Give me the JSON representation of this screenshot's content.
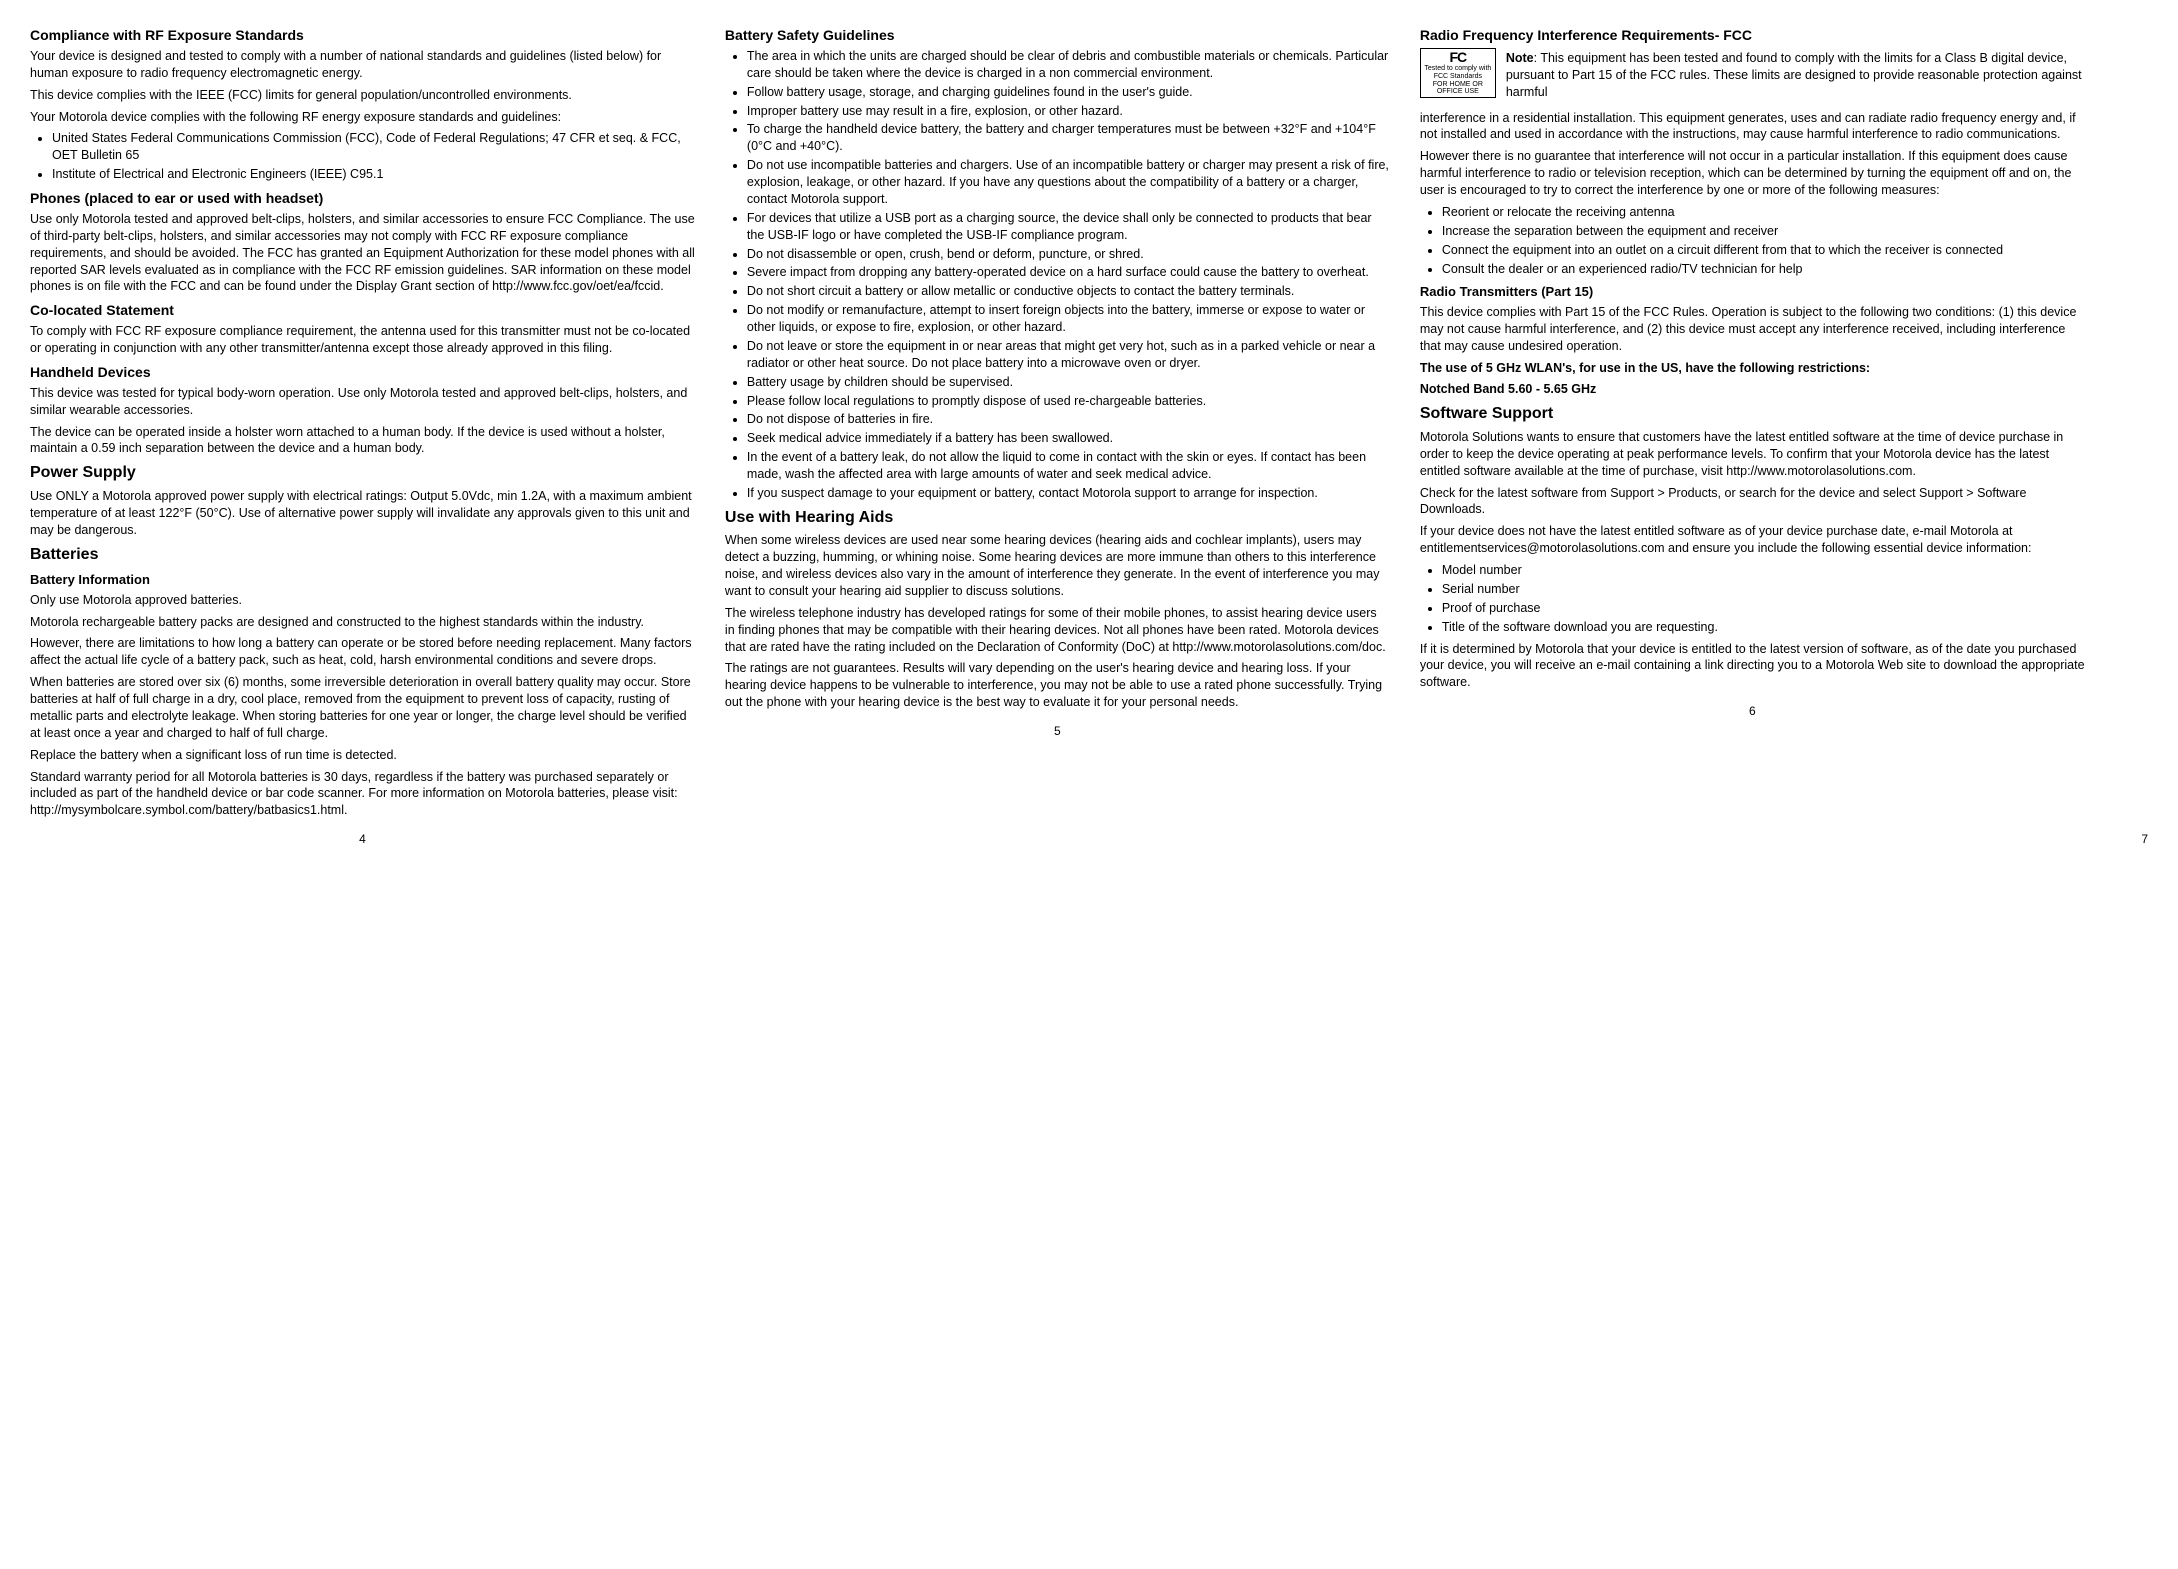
{
  "col1": {
    "h_compliance": "Compliance with RF Exposure Standards",
    "p1": "Your device is designed and tested to comply with a number of national standards and guidelines (listed below) for human exposure to radio frequency electromagnetic energy.",
    "p2": "This device complies with the IEEE (FCC) limits for general population/uncontrolled environments.",
    "p3": "Your Motorola device complies with the following RF energy exposure standards and guidelines:",
    "b1": "United States Federal Communications Commission (FCC), Code of Federal Regulations; 47 CFR et seq. & FCC, OET Bulletin 65",
    "b2": "Institute of Electrical and Electronic Engineers (IEEE) C95.1",
    "h_phones": "Phones (placed to ear or used with headset)",
    "p4": "Use only Motorola tested and approved belt-clips, holsters, and similar accessories to ensure FCC Compliance. The use of third-party belt-clips, holsters, and similar accessories may not comply with FCC RF exposure compliance requirements, and should be avoided. The FCC has granted an Equipment Authorization for these model phones with all reported SAR levels evaluated as in compliance with the FCC RF emission guidelines. SAR information on these model phones is on file with the FCC and can be found under the Display Grant section of http://www.fcc.gov/oet/ea/fccid.",
    "h_coloc": "Co-located Statement",
    "p5": "To comply with FCC RF exposure compliance requirement, the antenna used for this transmitter must not be co-located or operating in conjunction with any other transmitter/antenna except those already approved in this filing.",
    "h_handheld": "Handheld Devices",
    "p6": "This device was tested for typical body-worn operation. Use only Motorola tested and approved belt-clips, holsters, and similar wearable accessories.",
    "p7": "The device can be operated inside a holster worn attached to a human body. If the device is used without a holster, maintain a 0.59 inch separation between the device and a human body.",
    "h_power": "Power Supply",
    "p8": "Use ONLY a Motorola approved power supply with electrical ratings: Output 5.0Vdc, min 1.2A, with a maximum ambient temperature of at least 122°F (50°C). Use of alternative power supply will invalidate any approvals given to this unit and may be dangerous.",
    "h_batt": "Batteries",
    "h_battinfo": "Battery Information",
    "p9": "Only use Motorola approved batteries.",
    "p10": "Motorola rechargeable battery packs are designed and constructed to the highest standards within the industry.",
    "p11": "However, there are limitations to how long a battery can operate or be stored before needing replacement. Many factors affect the actual life cycle of a battery pack, such as heat, cold, harsh environmental conditions and severe drops.",
    "p12": "When batteries are stored over six (6) months, some irreversible deterioration in overall battery quality may occur. Store batteries at half of full charge in a dry, cool place, removed from the equipment to prevent loss of capacity, rusting of metallic parts and electrolyte leakage. When storing batteries for one year or longer, the charge level should be verified at least once a year and charged to half of full charge.",
    "p13": "Replace the battery when a significant loss of run time is detected.",
    "p14": "Standard warranty period for all Motorola batteries is 30 days, regardless if the battery was purchased separately or included as part of the handheld device or bar code scanner. For more information on Motorola batteries, please visit: http://mysymbolcare.symbol.com/battery/batbasics1.html.",
    "pagenum": "4"
  },
  "col2": {
    "h_safety": "Battery Safety Guidelines",
    "s1": "The area in which the units are charged should be clear of debris and combustible materials or chemicals. Particular care should be taken where the device is charged in a non commercial environment.",
    "s2": "Follow battery usage, storage, and charging guidelines found in the user's guide.",
    "s3": "Improper battery use may result in a fire, explosion, or other hazard.",
    "s4": "To charge the handheld device battery, the battery and charger temperatures must be between +32°F and +104°F (0°C and +40°C).",
    "s5": "Do not use incompatible batteries and chargers. Use of an incompatible battery or charger may present a risk of fire, explosion, leakage, or other hazard. If you have any questions about the compatibility of a battery or a charger, contact Motorola support.",
    "s6": "For devices that utilize a USB port as a charging source, the device shall only be connected to products that bear the USB-IF logo or have completed the USB-IF compliance program.",
    "s7": "Do not disassemble or open, crush, bend or deform, puncture, or shred.",
    "s8": "Severe impact from dropping any battery-operated device on a hard surface could cause the battery to overheat.",
    "s9": "Do not short circuit a battery or allow metallic or conductive objects to contact the battery terminals.",
    "s10": "Do not modify or remanufacture, attempt to insert foreign objects into the battery, immerse or expose to water or other liquids, or expose to fire, explosion, or other hazard.",
    "s11": "Do not leave or store the equipment in or near areas that might get very hot, such as in a parked vehicle or near a radiator or other heat source. Do not place battery into a microwave oven or dryer.",
    "s12": "Battery usage by children should be supervised.",
    "s13": "Please follow local regulations to promptly dispose of used re-chargeable batteries.",
    "s14": "Do not dispose of batteries in fire.",
    "s15": "Seek medical advice immediately if a battery has been swallowed.",
    "s16": "In the event of a battery leak, do not allow the liquid to come in contact with the skin or eyes. If contact has been made, wash the affected area with large amounts of water and seek medical advice.",
    "s17": "If you suspect damage to your equipment or battery, contact Motorola support to arrange for inspection.",
    "h_hearing": "Use with Hearing Aids",
    "p1": "When some wireless devices are used near some hearing devices (hearing aids and cochlear implants), users may detect a buzzing, humming, or whining noise. Some hearing devices are more immune than others to this interference noise, and wireless devices also vary in the amount of interference they generate. In the event of interference you may want to consult your hearing aid supplier to discuss solutions.",
    "p2": "The wireless telephone industry has developed ratings for some of their mobile phones, to assist hearing device users in finding phones that may be compatible with their hearing devices. Not all phones have been rated. Motorola devices that are rated have the rating included on the Declaration of Conformity (DoC) at http://www.motorolasolutions.com/doc.",
    "p3": "The ratings are not guarantees. Results will vary depending on the user's hearing device and hearing loss. If your hearing device happens to be vulnerable to interference, you may not be able to use a rated phone successfully. Trying out the phone with your hearing device is the best way to evaluate it for your personal needs.",
    "pagenum": "5"
  },
  "col3": {
    "h_rfi": "Radio Frequency Interference Requirements- FCC",
    "fcc_logo_top": "FC",
    "fcc_logo_mid": "Tested to comply with FCC Standards",
    "fcc_logo_bot": "FOR HOME OR OFFICE USE",
    "note_label": "Note",
    "note_text": ": This equipment has been tested and found to comply with the limits for a Class B digital device, pursuant to Part 15 of the FCC rules. These limits are designed to provide reasonable protection against harmful",
    "p_cont": "interference in a residential installation. This equipment generates, uses and can radiate radio frequency energy and, if not installed and used in accordance with the instructions, may cause harmful interference to radio communications.",
    "p2": "However there is no guarantee that interference will not occur in a particular installation. If this equipment does cause harmful interference to radio or television reception, which can be determined by turning the equipment off and on, the user is encouraged to try to correct the interference by one or more of the following measures:",
    "m1": "Reorient or relocate the receiving antenna",
    "m2": "Increase the separation between the equipment and receiver",
    "m3": "Connect the equipment into an outlet on a circuit different from that to which the receiver is connected",
    "m4": "Consult the dealer or an experienced radio/TV technician for help",
    "h_radio": "Radio Transmitters (Part 15)",
    "p3": "This device complies with Part 15 of the FCC Rules. Operation is subject to the following two conditions: (1) this device may not cause harmful interference, and (2) this device must accept any interference received, including interference that may cause undesired operation.",
    "p4": "The use of 5 GHz WLAN's, for use in the US, have the following restrictions:",
    "p5": "Notched Band 5.60 - 5.65 GHz",
    "h_soft": "Software Support",
    "p6": "Motorola Solutions wants to ensure that customers have the latest entitled software at the time of device purchase in order to keep the device operating at peak performance levels. To confirm that your Motorola device has the latest entitled software available at the time of purchase, visit http://www.motorolasolutions.com.",
    "p7": "Check for the latest software from Support > Products, or search for the device and select Support > Software Downloads.",
    "p8": "If your device does not have the latest entitled software as of your device purchase date, e-mail Motorola at entitlementservices@motorolasolutions.com and ensure you include the following essential device information:",
    "i1": "Model number",
    "i2": "Serial number",
    "i3": "Proof of purchase",
    "i4": "Title of the software download you are requesting.",
    "p9": "If it is determined by Motorola that your device is entitled to the latest version of software, as of the date you purchased your device, you will receive an e-mail containing a link directing you to a Motorola Web site to download the appropriate software.",
    "pagenum": "6"
  },
  "col4": {
    "pagenum": "7"
  }
}
